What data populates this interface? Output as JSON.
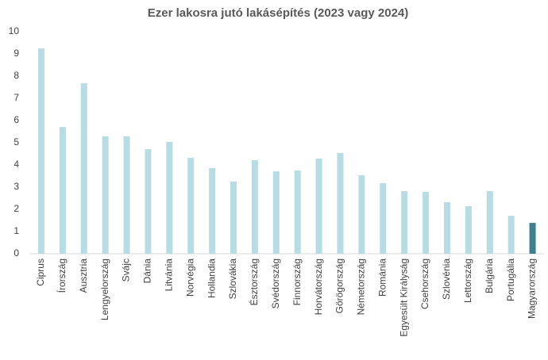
{
  "chart_data": {
    "type": "bar",
    "title": "Ezer lakosra jutó lakásépítés (2023 vagy 2024)",
    "categories": [
      "Ciprus",
      "Írország",
      "Ausztria",
      "Lengyelország",
      "Svájc",
      "Dánia",
      "Litvánia",
      "Norvégia",
      "Hollandia",
      "Szlovákia",
      "Észtország",
      "Svédország",
      "Finnország",
      "Horvátország",
      "Görögország",
      "Németország",
      "Románia",
      "Egyesült Királyság",
      "Csehország",
      "Szlovénia",
      "Lettország",
      "Bulgária",
      "Portugália",
      "Magyarország"
    ],
    "values": [
      9.25,
      5.71,
      7.68,
      5.29,
      5.29,
      4.71,
      5.04,
      4.32,
      3.86,
      3.25,
      4.21,
      3.71,
      3.75,
      4.29,
      4.54,
      3.54,
      3.18,
      2.82,
      2.79,
      2.32,
      2.14,
      2.82,
      1.71,
      1.39
    ],
    "colors": [
      "#b7dce3",
      "#b7dce3",
      "#b7dce3",
      "#b7dce3",
      "#b7dce3",
      "#b7dce3",
      "#b7dce3",
      "#b7dce3",
      "#b7dce3",
      "#b7dce3",
      "#b7dce3",
      "#b7dce3",
      "#b7dce3",
      "#b7dce3",
      "#b7dce3",
      "#b7dce3",
      "#b7dce3",
      "#b7dce3",
      "#b7dce3",
      "#b7dce3",
      "#b7dce3",
      "#b7dce3",
      "#b7dce3",
      "#3d7f8c"
    ],
    "ylim": [
      0,
      10
    ],
    "yticks": [
      0,
      1,
      2,
      3,
      4,
      5,
      6,
      7,
      8,
      9,
      10
    ],
    "grid": false
  }
}
